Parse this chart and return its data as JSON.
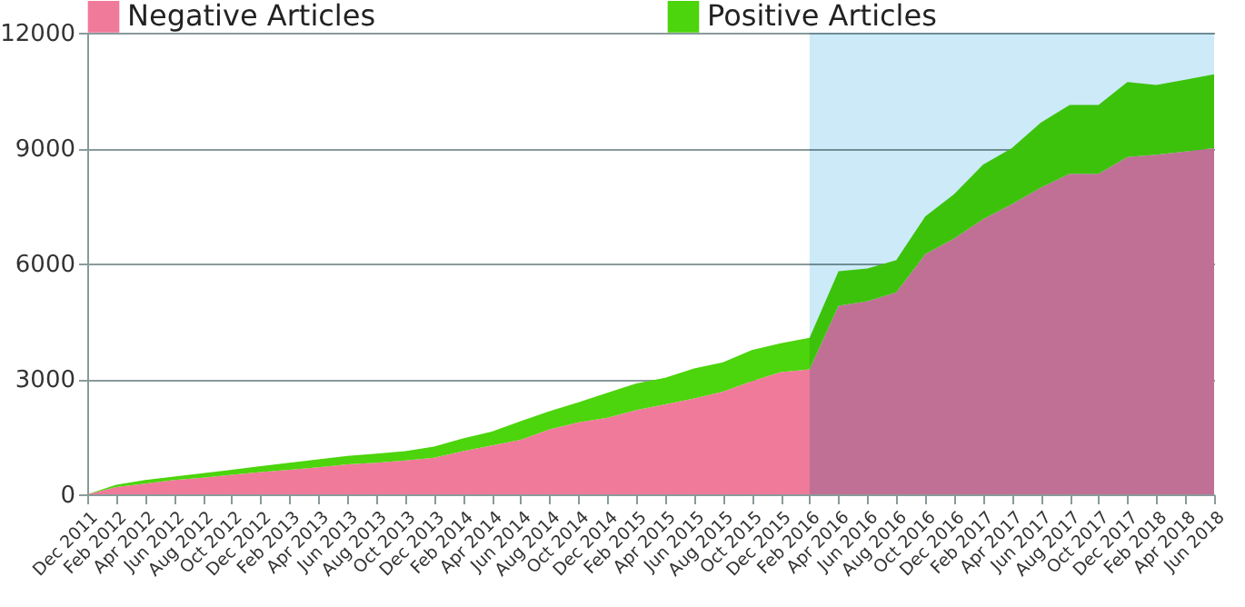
{
  "chart_data": {
    "type": "area",
    "stacked": true,
    "categories": [
      "Dec 2011",
      "Feb 2012",
      "Apr 2012",
      "Jun 2012",
      "Aug 2012",
      "Oct 2012",
      "Dec 2012",
      "Feb 2013",
      "Apr 2013",
      "Jun 2013",
      "Aug 2013",
      "Oct 2013",
      "Dec 2013",
      "Feb 2014",
      "Apr 2014",
      "Jun 2014",
      "Aug 2014",
      "Oct 2014",
      "Dec 2014",
      "Feb 2015",
      "Apr 2015",
      "Jun 2015",
      "Aug 2015",
      "Oct 2015",
      "Dec 2015",
      "Feb 2016",
      "Apr 2016",
      "Jun 2016",
      "Aug 2016",
      "Oct 2016",
      "Dec 2016",
      "Feb 2017",
      "Apr 2017",
      "Jun 2017",
      "Aug 2017",
      "Oct 2017",
      "Dec 2017",
      "Feb 2018",
      "Apr 2018",
      "Jun 2018"
    ],
    "series": [
      {
        "name": "Negative Articles",
        "color": "#f07a9a",
        "values": [
          0,
          190,
          280,
          370,
          430,
          510,
          580,
          640,
          700,
          780,
          820,
          880,
          950,
          1120,
          1270,
          1420,
          1690,
          1870,
          1990,
          2190,
          2340,
          2490,
          2670,
          2940,
          3180,
          3250,
          4900,
          5020,
          5250,
          6240,
          6650,
          7150,
          7540,
          7970,
          8330,
          8330,
          8770,
          8830,
          8910,
          9000
        ]
      },
      {
        "name": "Positive Articles",
        "color": "#4cd40c",
        "values": [
          0,
          60,
          90,
          90,
          120,
          130,
          150,
          180,
          210,
          220,
          240,
          240,
          290,
          330,
          360,
          480,
          470,
          520,
          650,
          690,
          690,
          780,
          760,
          810,
          750,
          820,
          900,
          850,
          840,
          980,
          1150,
          1420,
          1460,
          1690,
          1790,
          1790,
          1950,
          1810,
          1870,
          1920
        ]
      }
    ],
    "ylim": [
      0,
      12000
    ],
    "yticks": [
      0,
      3000,
      6000,
      9000,
      12000
    ],
    "grid": "y",
    "legend": "top",
    "bands": [
      {
        "axis": "x",
        "from": "Feb 2016",
        "to": "Jun 2018",
        "color": "#a9dcf2"
      }
    ]
  }
}
